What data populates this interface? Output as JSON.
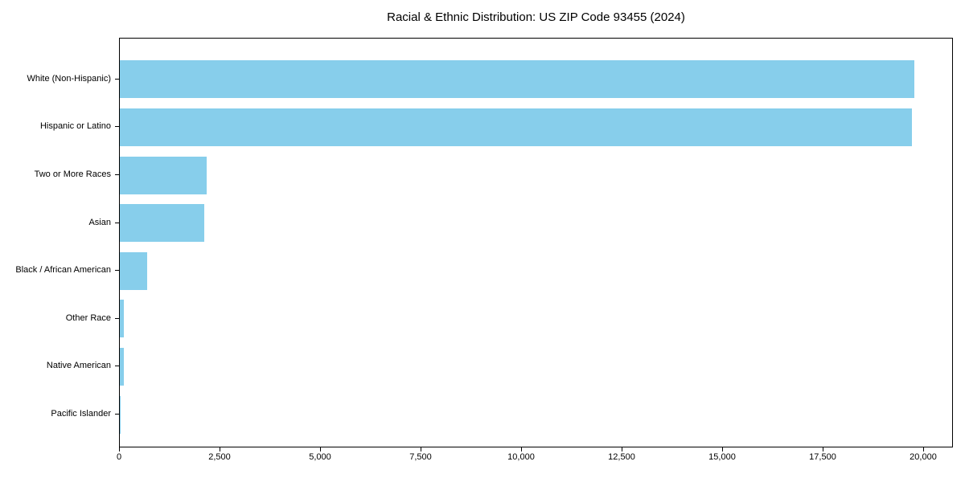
{
  "chart_data": {
    "type": "bar",
    "orientation": "horizontal",
    "title": "Racial & Ethnic Distribution: US ZIP Code 93455 (2024)",
    "categories": [
      "White (Non-Hispanic)",
      "Hispanic or Latino",
      "Two or More Races",
      "Asian",
      "Black / African American",
      "Other Race",
      "Native American",
      "Pacific Islander"
    ],
    "values": [
      19760,
      19700,
      2150,
      2090,
      675,
      105,
      100,
      15
    ],
    "xlabel": "",
    "ylabel": "",
    "xlim": [
      0,
      20000
    ],
    "x_ticks": [
      0,
      2500,
      5000,
      7500,
      10000,
      12500,
      15000,
      17500,
      20000
    ],
    "x_tick_labels": [
      "0",
      "2,500",
      "5,000",
      "7,500",
      "10,000",
      "12,500",
      "15,000",
      "17,500",
      "20,000"
    ],
    "bar_color": "#87CEEB",
    "text_color": "#000000",
    "grid": false,
    "legend": null
  }
}
